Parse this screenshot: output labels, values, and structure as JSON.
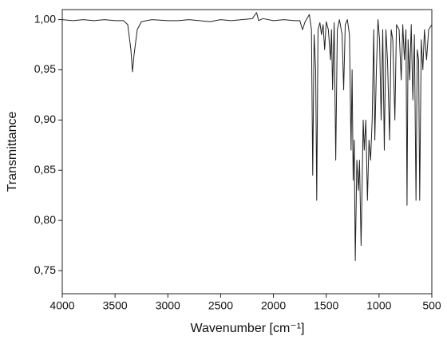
{
  "chart_data": {
    "type": "line",
    "xlabel": "Wavenumber [cm⁻¹]",
    "ylabel": "Transmittance",
    "color": "#222222",
    "xlim": [
      4000,
      500
    ],
    "ylim": [
      0.727,
      1.01
    ],
    "xticks": [
      4000,
      3500,
      3000,
      2500,
      2000,
      1500,
      1000,
      500
    ],
    "yticks": [
      {
        "value": 0.75,
        "label": "0,75"
      },
      {
        "value": 0.8,
        "label": "0,80"
      },
      {
        "value": 0.85,
        "label": "0,85"
      },
      {
        "value": 0.9,
        "label": "0,90"
      },
      {
        "value": 0.95,
        "label": "0,95"
      },
      {
        "value": 1.0,
        "label": "1,00"
      }
    ],
    "x": [
      4000,
      3900,
      3800,
      3700,
      3600,
      3500,
      3420,
      3380,
      3350,
      3335,
      3320,
      3290,
      3250,
      3150,
      3000,
      2900,
      2800,
      2700,
      2600,
      2500,
      2400,
      2300,
      2200,
      2160,
      2140,
      2100,
      2000,
      1900,
      1800,
      1750,
      1725,
      1700,
      1660,
      1640,
      1628,
      1615,
      1600,
      1590,
      1578,
      1560,
      1545,
      1530,
      1515,
      1500,
      1480,
      1460,
      1450,
      1440,
      1425,
      1410,
      1395,
      1375,
      1350,
      1335,
      1320,
      1300,
      1280,
      1265,
      1255,
      1245,
      1235,
      1225,
      1210,
      1195,
      1185,
      1170,
      1150,
      1140,
      1125,
      1110,
      1095,
      1080,
      1065,
      1050,
      1040,
      1025,
      1010,
      995,
      980,
      965,
      950,
      935,
      920,
      900,
      885,
      870,
      850,
      835,
      810,
      790,
      775,
      760,
      745,
      735,
      725,
      710,
      695,
      680,
      665,
      650,
      638,
      625,
      615,
      600,
      585,
      570,
      550,
      530,
      500
    ],
    "values": [
      1.0,
      0.999,
      1.0,
      0.999,
      1.0,
      0.999,
      0.999,
      0.995,
      0.97,
      0.948,
      0.965,
      0.99,
      0.998,
      1.0,
      0.999,
      0.999,
      1.0,
      0.999,
      0.998,
      1.0,
      0.999,
      1.0,
      1.001,
      1.007,
      0.999,
      1.001,
      0.999,
      1.0,
      0.999,
      0.999,
      0.99,
      0.998,
      1.005,
      0.99,
      0.845,
      0.985,
      0.95,
      0.82,
      0.99,
      0.997,
      0.985,
      0.995,
      0.97,
      0.998,
      0.99,
      0.96,
      0.99,
      0.93,
      0.997,
      0.86,
      0.99,
      1.0,
      0.985,
      0.93,
      0.995,
      1.0,
      0.985,
      0.87,
      0.95,
      0.84,
      0.88,
      0.76,
      0.86,
      0.83,
      0.86,
      0.775,
      0.9,
      0.87,
      0.9,
      0.82,
      0.88,
      0.86,
      0.9,
      0.99,
      0.88,
      0.95,
      1.0,
      0.98,
      0.9,
      0.99,
      0.87,
      0.99,
      0.96,
      0.88,
      0.99,
      0.98,
      0.9,
      0.995,
      0.99,
      0.94,
      0.995,
      0.96,
      0.99,
      0.815,
      0.98,
      0.94,
      0.995,
      0.92,
      0.985,
      0.82,
      0.97,
      0.96,
      0.82,
      0.98,
      0.95,
      0.99,
      0.96,
      0.99,
      0.995
    ]
  }
}
